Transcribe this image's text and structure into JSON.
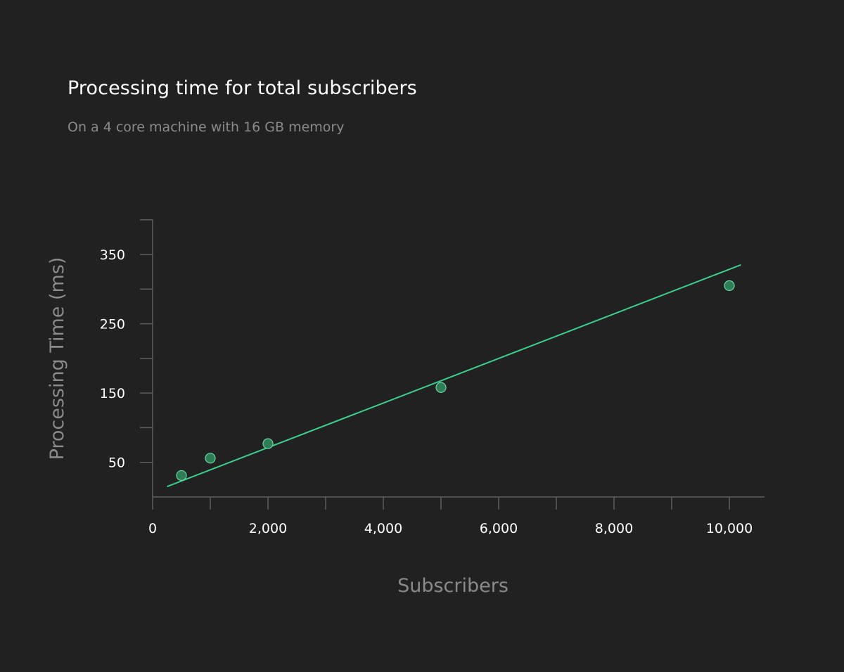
{
  "chart_data": {
    "type": "scatter",
    "title": "Processing time for total subscribers",
    "subtitle": "On a 4 core machine with 16 GB memory",
    "xlabel": "Subscribers",
    "ylabel": "Processing Time (ms)",
    "xlim": [
      0,
      10600
    ],
    "ylim": [
      0,
      400
    ],
    "x_ticks": [
      0,
      2000,
      4000,
      6000,
      8000,
      10000
    ],
    "x_tick_labels": [
      "0",
      "2,000",
      "4,000",
      "6,000",
      "8,000",
      "10,000"
    ],
    "x_minor_ticks": [
      1000,
      3000,
      5000,
      7000,
      9000
    ],
    "y_ticks": [
      50,
      150,
      250,
      350
    ],
    "y_tick_labels": [
      "50",
      "150",
      "250",
      "350"
    ],
    "y_minor_ticks": [
      100,
      200,
      300,
      400
    ],
    "grid": false,
    "series": [
      {
        "points": [
          {
            "x": 500,
            "y": 31
          },
          {
            "x": 1000,
            "y": 56
          },
          {
            "x": 2000,
            "y": 77
          },
          {
            "x": 5000,
            "y": 158
          },
          {
            "x": 10000,
            "y": 305
          }
        ]
      }
    ],
    "trendline": {
      "x": [
        250,
        10200
      ],
      "y": [
        15,
        335
      ]
    },
    "colors": {
      "background": "#212121",
      "axis": "#5e5e5e",
      "line": "#3ccf8e",
      "point_fill": "#2e7d55",
      "point_stroke": "#6ad6a3"
    }
  }
}
